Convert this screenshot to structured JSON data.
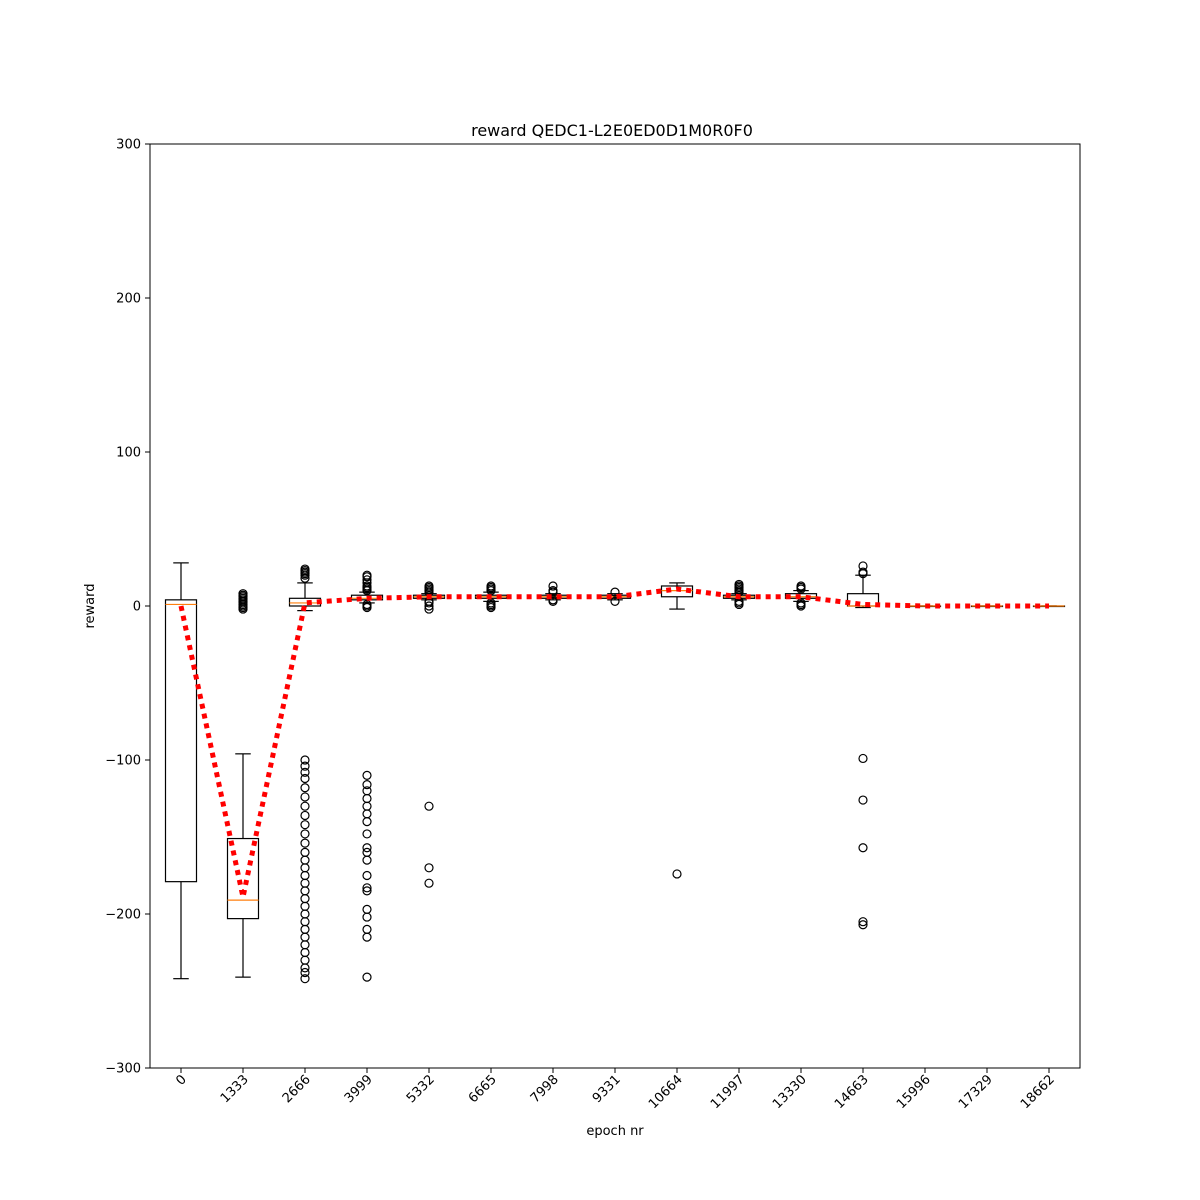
{
  "chart_data": {
    "type": "box",
    "title": "reward QEDC1-L2E0ED0D1M0R0F0",
    "xlabel": "epoch nr",
    "ylabel": "reward",
    "ylim": [
      -300,
      300
    ],
    "yticks": [
      -300,
      -200,
      -100,
      0,
      100,
      200,
      300
    ],
    "yticklabels": [
      "−300",
      "−200",
      "−100",
      "0",
      "100",
      "200",
      "300"
    ],
    "categories": [
      "0",
      "1333",
      "2666",
      "3999",
      "5332",
      "6665",
      "7998",
      "9331",
      "10664",
      "11997",
      "13330",
      "14663",
      "15996",
      "17329",
      "18662"
    ],
    "boxes": [
      {
        "whisker_low": -242,
        "q1": -179,
        "median": 1,
        "q3": 4,
        "whisker_high": 28,
        "outliers": []
      },
      {
        "whisker_low": -241,
        "q1": -203,
        "median": -191,
        "q3": -151,
        "whisker_high": -96,
        "outliers": [
          -2,
          -1,
          0,
          1,
          2,
          3,
          4,
          5,
          6,
          7,
          8
        ]
      },
      {
        "whisker_low": -3,
        "q1": 0,
        "median": 2,
        "q3": 5,
        "whisker_high": 15,
        "outliers": [
          18,
          20,
          21,
          22,
          23,
          24,
          -100,
          -104,
          -108,
          -112,
          -118,
          -124,
          -130,
          -136,
          -142,
          -148,
          -154,
          -160,
          -165,
          -170,
          -175,
          -180,
          -185,
          -190,
          -195,
          -200,
          -205,
          -210,
          -215,
          -220,
          -225,
          -230,
          -235,
          -238,
          -242
        ]
      },
      {
        "whisker_low": 2,
        "q1": 4,
        "median": 5,
        "q3": 7,
        "whisker_high": 9,
        "outliers": [
          -1,
          0,
          1,
          10,
          11,
          12,
          13,
          15,
          17,
          19,
          20,
          -110,
          -116,
          -120,
          -125,
          -130,
          -135,
          -140,
          -148,
          -157,
          -160,
          -165,
          -175,
          -183,
          -185,
          -197,
          -202,
          -210,
          -215,
          -241
        ]
      },
      {
        "whisker_low": 4,
        "q1": 5,
        "median": 6,
        "q3": 7,
        "whisker_high": 8,
        "outliers": [
          -2,
          0,
          2,
          3,
          9,
          10,
          11,
          12,
          13,
          -130,
          -170,
          -180
        ]
      },
      {
        "whisker_low": 3,
        "q1": 5,
        "median": 6,
        "q3": 7,
        "whisker_high": 9,
        "outliers": [
          -1,
          0,
          1,
          2,
          10,
          11,
          12,
          13
        ]
      },
      {
        "whisker_low": 4,
        "q1": 5,
        "median": 6,
        "q3": 7,
        "whisker_high": 8,
        "outliers": [
          3,
          4,
          9,
          10,
          13
        ]
      },
      {
        "whisker_low": 4,
        "q1": 5,
        "median": 6,
        "q3": 7,
        "whisker_high": 8,
        "outliers": [
          3,
          9
        ]
      },
      {
        "whisker_low": -2,
        "q1": 6,
        "median": 10,
        "q3": 13,
        "whisker_high": 15,
        "outliers": [
          -174
        ]
      },
      {
        "whisker_low": 4,
        "q1": 5,
        "median": 6,
        "q3": 7,
        "whisker_high": 8,
        "outliers": [
          1,
          2,
          3,
          9,
          10,
          11,
          12,
          13,
          14
        ]
      },
      {
        "whisker_low": 3,
        "q1": 5,
        "median": 6,
        "q3": 8,
        "whisker_high": 10,
        "outliers": [
          0,
          1,
          2,
          11,
          12,
          13
        ]
      },
      {
        "whisker_low": -1,
        "q1": 0,
        "median": 0,
        "q3": 8,
        "whisker_high": 20,
        "outliers": [
          21,
          22,
          26,
          -99,
          -126,
          -157,
          -205,
          -207
        ]
      },
      {
        "whisker_low": 0,
        "q1": 0,
        "median": 0,
        "q3": 0,
        "whisker_high": 0,
        "outliers": []
      },
      {
        "whisker_low": 0,
        "q1": 0,
        "median": 0,
        "q3": 0,
        "whisker_high": 0,
        "outliers": []
      },
      {
        "whisker_low": 0,
        "q1": 0,
        "median": 0,
        "q3": 0,
        "whisker_high": 0,
        "outliers": []
      }
    ],
    "mean_line": [
      0,
      -189,
      2,
      5,
      6,
      6,
      6,
      6,
      11,
      6,
      6,
      1,
      0,
      0,
      0
    ],
    "colors": {
      "box": "#000000",
      "median": "#ff7f0e",
      "mean_line": "#ff0000",
      "axes": "#000000"
    }
  }
}
